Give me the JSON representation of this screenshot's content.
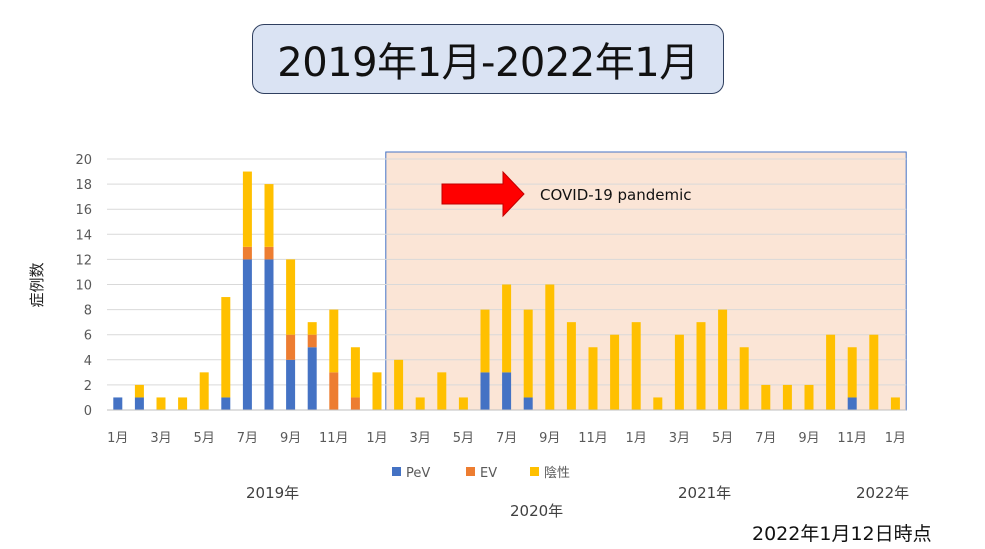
{
  "title": "2019年1月-2022年1月",
  "timestamp": "2022年1月12日時点",
  "years": {
    "y2019": "2019年",
    "y2020": "2020年",
    "y2021": "2021年",
    "y2022": "2022年"
  },
  "colors": {
    "PeV": "#4472c4",
    "EV": "#ed7d31",
    "陰性": "#ffc000",
    "highlight": "#fbe5d6",
    "highlight_border": "#4472c4",
    "arrow": "#ff0000"
  },
  "chart_data": {
    "type": "bar",
    "stacked": true,
    "ylabel": "症例数",
    "ylim": [
      0,
      20
    ],
    "yticks": [
      0,
      2,
      4,
      6,
      8,
      10,
      12,
      14,
      16,
      18,
      20
    ],
    "categories": [
      "1月",
      "2月",
      "3月",
      "4月",
      "5月",
      "6月",
      "7月",
      "8月",
      "9月",
      "10月",
      "11月",
      "12月",
      "1月",
      "2月",
      "3月",
      "4月",
      "5月",
      "6月",
      "7月",
      "8月",
      "9月",
      "10月",
      "11月",
      "12月",
      "1月",
      "2月",
      "3月",
      "4月",
      "5月",
      "6月",
      "7月",
      "8月",
      "9月",
      "10月",
      "11月",
      "12月",
      "1月"
    ],
    "tick_labels": [
      "1月",
      "3月",
      "5月",
      "7月",
      "9月",
      "11月",
      "1月",
      "3月",
      "5月",
      "7月",
      "9月",
      "11月",
      "1月",
      "3月",
      "5月",
      "7月",
      "9月",
      "11月",
      "1月"
    ],
    "series": [
      {
        "name": "PeV",
        "values": [
          1,
          1,
          0,
          0,
          0,
          1,
          12,
          12,
          4,
          5,
          0,
          0,
          0,
          0,
          0,
          0,
          0,
          3,
          3,
          1,
          0,
          0,
          0,
          0,
          0,
          0,
          0,
          0,
          0,
          0,
          0,
          0,
          0,
          0,
          1,
          0,
          0
        ]
      },
      {
        "name": "EV",
        "values": [
          0,
          0,
          0,
          0,
          0,
          0,
          1,
          1,
          2,
          1,
          3,
          1,
          0,
          0,
          0,
          0,
          0,
          0,
          0,
          0,
          0,
          0,
          0,
          0,
          0,
          0,
          0,
          0,
          0,
          0,
          0,
          0,
          0,
          0,
          0,
          0,
          0
        ]
      },
      {
        "name": "陰性",
        "values": [
          0,
          1,
          1,
          1,
          3,
          8,
          6,
          5,
          6,
          1,
          5,
          4,
          3,
          4,
          1,
          3,
          1,
          5,
          7,
          7,
          10,
          7,
          5,
          6,
          7,
          1,
          6,
          7,
          8,
          5,
          2,
          2,
          2,
          6,
          4,
          6,
          1
        ]
      }
    ],
    "legend": {
      "position": "bottom",
      "entries": [
        "PeV",
        "EV",
        "陰性"
      ]
    },
    "grid": true,
    "annotation": {
      "text": "COVID-19 pandemic",
      "highlight_start_index": 13,
      "highlight_end_index": 36
    }
  }
}
